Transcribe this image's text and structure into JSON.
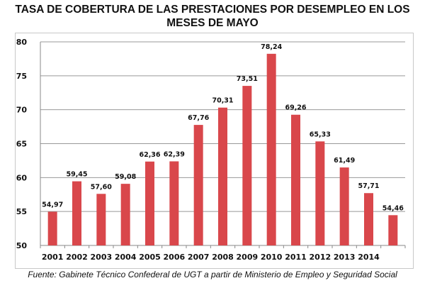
{
  "title_line1": "TASA DE COBERTURA DE LAS PRESTACIONES POR DESEMPLEO EN LOS",
  "title_line2": "MESES DE MAYO",
  "source": "Fuente: Gabinete Técnico Confederal de UGT a partir de Ministerio de Empleo y Seguridad Social",
  "chart_data": {
    "type": "bar",
    "title": "TASA DE COBERTURA DE LAS PRESTACIONES POR DESEMPLEO EN LOS MESES DE MAYO",
    "categories": [
      "2001",
      "2002",
      "2003",
      "2004",
      "2005",
      "2006",
      "2007",
      "2008",
      "2009",
      "2010",
      "2011",
      "2012",
      "2013",
      "2014",
      ""
    ],
    "values": [
      54.97,
      59.45,
      57.6,
      59.08,
      62.36,
      62.39,
      67.76,
      70.31,
      73.51,
      78.24,
      69.26,
      65.33,
      61.49,
      57.71,
      54.46
    ],
    "data_labels": [
      "54,97",
      "59,45",
      "57,60",
      "59,08",
      "62,36",
      "62,39",
      "67,76",
      "70,31",
      "73,51",
      "78,24",
      "69,26",
      "65,33",
      "61,49",
      "57,71",
      "54,46"
    ],
    "ylim": [
      50,
      80
    ],
    "yticks": [
      50,
      55,
      60,
      65,
      70,
      75,
      80
    ],
    "grid": true,
    "bar_color": "#d9474b",
    "xlabel": "",
    "ylabel": ""
  }
}
